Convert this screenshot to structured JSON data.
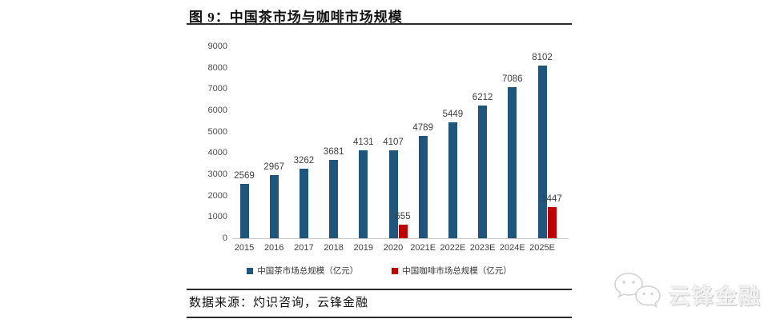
{
  "figure": {
    "title": "图 9：中国茶市场与咖啡市场规模"
  },
  "footer": {
    "source": "数据来源：灼识咨询，云锋金融"
  },
  "watermark": {
    "brand": "云锋金融",
    "icon": "wechat-icon"
  },
  "colors": {
    "tea_bar": "#1F567E",
    "coffee_bar": "#C00000",
    "axis_text": "#4d4d4d",
    "rule": "#2b2b2b"
  },
  "chart_data": {
    "type": "bar",
    "title": "中国茶市场与咖啡市场规模",
    "categories": [
      "2015",
      "2016",
      "2017",
      "2018",
      "2019",
      "2020",
      "2021E",
      "2022E",
      "2023E",
      "2024E",
      "2025E"
    ],
    "series": [
      {
        "name": "中国茶市场总规模（亿元）",
        "color": "#1F567E",
        "values": [
          2569,
          2967,
          3262,
          3681,
          4131,
          4107,
          4789,
          5449,
          6212,
          7086,
          8102
        ]
      },
      {
        "name": "中国咖啡市场总规模（亿元）",
        "color": "#C00000",
        "values": [
          null,
          null,
          null,
          null,
          null,
          655,
          null,
          null,
          null,
          null,
          1447
        ]
      }
    ],
    "xlabel": "",
    "ylabel": "",
    "ylim": [
      0,
      9000
    ],
    "ytick_step": 1000,
    "grid": false,
    "legend_position": "bottom",
    "data_labels": true
  }
}
